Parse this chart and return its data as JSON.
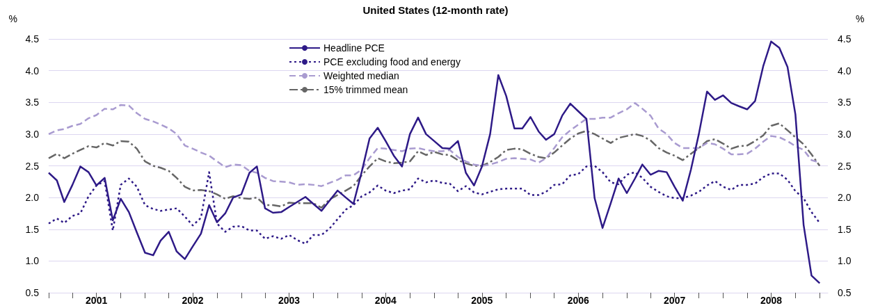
{
  "chart_data": {
    "type": "line",
    "title": "United States (12-month rate)",
    "ylabel": "%",
    "y2label": "%",
    "x": [
      "2001-01",
      "2001-02",
      "2001-03",
      "2001-04",
      "2001-05",
      "2001-06",
      "2001-07",
      "2001-08",
      "2001-09",
      "2001-10",
      "2001-11",
      "2001-12",
      "2002-01",
      "2002-02",
      "2002-03",
      "2002-04",
      "2002-05",
      "2002-06",
      "2002-07",
      "2002-08",
      "2002-09",
      "2002-10",
      "2002-11",
      "2002-12",
      "2003-01",
      "2003-02",
      "2003-03",
      "2003-04",
      "2003-05",
      "2003-06",
      "2003-07",
      "2003-08",
      "2003-09",
      "2003-10",
      "2003-11",
      "2003-12",
      "2004-01",
      "2004-02",
      "2004-03",
      "2004-04",
      "2004-05",
      "2004-06",
      "2004-07",
      "2004-08",
      "2004-09",
      "2004-10",
      "2004-11",
      "2004-12",
      "2005-01",
      "2005-02",
      "2005-03",
      "2005-04",
      "2005-05",
      "2005-06",
      "2005-07",
      "2005-08",
      "2005-09",
      "2005-10",
      "2005-11",
      "2005-12",
      "2006-01",
      "2006-02",
      "2006-03",
      "2006-04",
      "2006-05",
      "2006-06",
      "2006-07",
      "2006-08",
      "2006-09",
      "2006-10",
      "2006-11",
      "2006-12",
      "2007-01",
      "2007-02",
      "2007-03",
      "2007-04",
      "2007-05",
      "2007-06",
      "2007-07",
      "2007-08",
      "2007-09",
      "2007-10",
      "2007-11",
      "2007-12",
      "2008-01",
      "2008-02",
      "2008-03",
      "2008-04",
      "2008-05",
      "2008-06",
      "2008-07",
      "2008-08",
      "2008-09",
      "2008-10",
      "2008-11",
      "2008-12",
      "2009-01"
    ],
    "series": [
      {
        "name": "Headline PCE",
        "color": "#2e1a87",
        "line_style": "solid",
        "values": [
          2.39,
          2.27,
          1.93,
          2.2,
          2.49,
          2.4,
          2.19,
          2.31,
          1.64,
          1.98,
          1.77,
          1.45,
          1.13,
          1.09,
          1.32,
          1.46,
          1.15,
          1.03,
          1.23,
          1.43,
          1.88,
          1.61,
          1.75,
          2.0,
          2.05,
          2.39,
          2.49,
          1.83,
          1.76,
          1.77,
          1.85,
          1.93,
          2.01,
          1.9,
          1.79,
          1.95,
          2.11,
          2.0,
          1.9,
          2.4,
          2.93,
          3.1,
          2.89,
          2.66,
          2.49,
          3.0,
          3.26,
          3.0,
          2.89,
          2.78,
          2.77,
          2.89,
          2.39,
          2.19,
          2.49,
          3.0,
          3.93,
          3.6,
          3.09,
          3.09,
          3.27,
          3.04,
          2.91,
          3.0,
          3.29,
          3.48,
          3.36,
          3.24,
          1.99,
          1.52,
          1.91,
          2.3,
          2.07,
          2.3,
          2.52,
          2.36,
          2.42,
          2.4,
          2.17,
          1.95,
          2.44,
          3.0,
          3.67,
          3.54,
          3.61,
          3.49,
          3.44,
          3.39,
          3.52,
          4.07,
          4.46,
          4.36,
          4.06,
          3.31,
          1.57,
          0.77,
          0.65
        ]
      },
      {
        "name": "PCE excluding food and energy",
        "color": "#2e1a87",
        "line_style": "dotted",
        "values": [
          1.59,
          1.67,
          1.6,
          1.71,
          1.75,
          2.02,
          2.19,
          2.26,
          1.48,
          2.2,
          2.3,
          2.17,
          1.88,
          1.82,
          1.79,
          1.81,
          1.83,
          1.7,
          1.56,
          1.68,
          2.4,
          1.59,
          1.46,
          1.54,
          1.55,
          1.48,
          1.48,
          1.35,
          1.39,
          1.35,
          1.41,
          1.33,
          1.27,
          1.41,
          1.41,
          1.51,
          1.66,
          1.81,
          1.88,
          2.02,
          2.08,
          2.19,
          2.11,
          2.07,
          2.11,
          2.13,
          2.3,
          2.24,
          2.27,
          2.23,
          2.22,
          2.1,
          2.18,
          2.08,
          2.05,
          2.09,
          2.13,
          2.14,
          2.14,
          2.14,
          2.04,
          2.04,
          2.09,
          2.2,
          2.21,
          2.35,
          2.37,
          2.49,
          2.5,
          2.4,
          2.24,
          2.21,
          2.36,
          2.4,
          2.31,
          2.17,
          2.09,
          2.02,
          1.99,
          1.99,
          2.03,
          2.09,
          2.19,
          2.26,
          2.17,
          2.12,
          2.2,
          2.2,
          2.22,
          2.32,
          2.38,
          2.38,
          2.28,
          2.1,
          1.99,
          1.77,
          1.6
        ]
      },
      {
        "name": "Weighted median",
        "color": "#a99bd0",
        "line_style": "dashed",
        "values": [
          3.0,
          3.06,
          3.08,
          3.13,
          3.16,
          3.25,
          3.3,
          3.4,
          3.39,
          3.46,
          3.45,
          3.33,
          3.24,
          3.2,
          3.15,
          3.09,
          3.0,
          2.82,
          2.77,
          2.71,
          2.66,
          2.57,
          2.48,
          2.52,
          2.51,
          2.42,
          2.39,
          2.31,
          2.26,
          2.25,
          2.24,
          2.2,
          2.21,
          2.2,
          2.18,
          2.23,
          2.28,
          2.35,
          2.35,
          2.44,
          2.62,
          2.78,
          2.77,
          2.75,
          2.73,
          2.77,
          2.78,
          2.75,
          2.73,
          2.73,
          2.75,
          2.64,
          2.57,
          2.52,
          2.5,
          2.52,
          2.56,
          2.61,
          2.62,
          2.61,
          2.6,
          2.55,
          2.62,
          2.78,
          2.95,
          3.06,
          3.15,
          3.24,
          3.24,
          3.26,
          3.26,
          3.33,
          3.39,
          3.49,
          3.4,
          3.29,
          3.09,
          3.0,
          2.86,
          2.78,
          2.78,
          2.78,
          2.86,
          2.84,
          2.77,
          2.68,
          2.68,
          2.69,
          2.77,
          2.88,
          2.97,
          2.95,
          2.89,
          2.81,
          2.75,
          2.59,
          2.55
        ]
      },
      {
        "name": "15% trimmed mean",
        "color": "#666666",
        "line_style": "dashdot",
        "values": [
          2.62,
          2.69,
          2.62,
          2.69,
          2.75,
          2.81,
          2.79,
          2.86,
          2.82,
          2.89,
          2.88,
          2.77,
          2.57,
          2.5,
          2.47,
          2.42,
          2.31,
          2.17,
          2.11,
          2.12,
          2.1,
          2.05,
          1.98,
          2.02,
          1.99,
          1.98,
          2.0,
          1.88,
          1.88,
          1.86,
          1.92,
          1.91,
          1.91,
          1.91,
          1.84,
          1.97,
          2.04,
          2.11,
          2.18,
          2.35,
          2.49,
          2.62,
          2.57,
          2.54,
          2.55,
          2.57,
          2.73,
          2.67,
          2.72,
          2.68,
          2.67,
          2.59,
          2.54,
          2.5,
          2.5,
          2.56,
          2.64,
          2.75,
          2.77,
          2.76,
          2.69,
          2.64,
          2.62,
          2.71,
          2.82,
          2.93,
          3.01,
          3.05,
          3.0,
          2.93,
          2.86,
          2.94,
          2.97,
          3.0,
          2.97,
          2.9,
          2.78,
          2.71,
          2.66,
          2.59,
          2.69,
          2.78,
          2.89,
          2.92,
          2.85,
          2.77,
          2.81,
          2.82,
          2.89,
          2.98,
          3.13,
          3.17,
          3.06,
          2.95,
          2.84,
          2.68,
          2.5
        ]
      }
    ],
    "xlim": [
      "2001-01",
      "2009-02"
    ],
    "xticks": [
      {
        "value": "2001-01",
        "label": null
      },
      {
        "value": "2001-04",
        "label": null
      },
      {
        "value": "2001-07",
        "label": "2001"
      },
      {
        "value": "2001-10",
        "label": null
      },
      {
        "value": "2002-01",
        "label": null
      },
      {
        "value": "2002-04",
        "label": null
      },
      {
        "value": "2002-07",
        "label": "2002"
      },
      {
        "value": "2002-10",
        "label": null
      },
      {
        "value": "2003-01",
        "label": null
      },
      {
        "value": "2003-04",
        "label": null
      },
      {
        "value": "2003-07",
        "label": "2003"
      },
      {
        "value": "2003-10",
        "label": null
      },
      {
        "value": "2004-01",
        "label": null
      },
      {
        "value": "2004-04",
        "label": null
      },
      {
        "value": "2004-07",
        "label": "2004"
      },
      {
        "value": "2004-10",
        "label": null
      },
      {
        "value": "2005-01",
        "label": null
      },
      {
        "value": "2005-04",
        "label": null
      },
      {
        "value": "2005-07",
        "label": "2005"
      },
      {
        "value": "2005-10",
        "label": null
      },
      {
        "value": "2006-01",
        "label": null
      },
      {
        "value": "2006-04",
        "label": null
      },
      {
        "value": "2006-07",
        "label": "2006"
      },
      {
        "value": "2006-10",
        "label": null
      },
      {
        "value": "2007-01",
        "label": null
      },
      {
        "value": "2007-04",
        "label": null
      },
      {
        "value": "2007-07",
        "label": "2007"
      },
      {
        "value": "2007-10",
        "label": null
      },
      {
        "value": "2008-01",
        "label": null
      },
      {
        "value": "2008-04",
        "label": null
      },
      {
        "value": "2008-07",
        "label": "2008"
      },
      {
        "value": "2008-10",
        "label": null
      },
      {
        "value": "2009-01",
        "label": null
      }
    ],
    "ylim": [
      0.5,
      4.5
    ],
    "yticks": [
      {
        "value": 0.5,
        "label": "0.5"
      },
      {
        "value": 1,
        "label": "1.0"
      },
      {
        "value": 1.5,
        "label": "1.5"
      },
      {
        "value": 2,
        "label": "2.0"
      },
      {
        "value": 2.5,
        "label": "2.5"
      },
      {
        "value": 3,
        "label": "3.0"
      },
      {
        "value": 3.5,
        "label": "3.5"
      },
      {
        "value": 4,
        "label": "4.0"
      },
      {
        "value": 4.5,
        "label": "4.5"
      }
    ],
    "y2lim": [
      0.5,
      4.5
    ],
    "y2ticks": [
      {
        "value": 0.5,
        "label": "0.5"
      },
      {
        "value": 1,
        "label": "1.0"
      },
      {
        "value": 1.5,
        "label": "1.5"
      },
      {
        "value": 2,
        "label": "2.0"
      },
      {
        "value": 2.5,
        "label": "2.5"
      },
      {
        "value": 3,
        "label": "3.0"
      },
      {
        "value": 3.5,
        "label": "3.5"
      },
      {
        "value": 4,
        "label": "4.0"
      },
      {
        "value": 4.5,
        "label": "4.5"
      }
    ],
    "grid": "y",
    "legend": "top",
    "marker": "none"
  }
}
